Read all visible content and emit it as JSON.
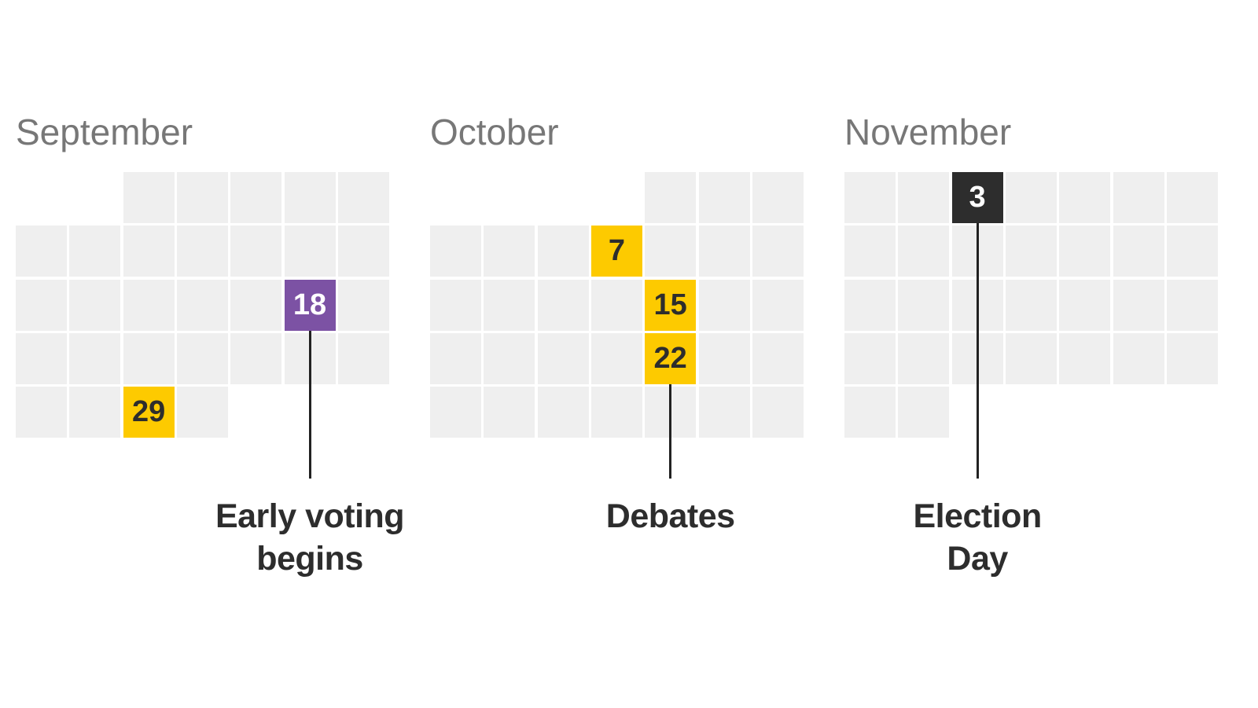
{
  "colors": {
    "empty_cell": "#efefef",
    "debate": "#fdca00",
    "early_voting": "#7c52a4",
    "election_day": "#2d2d2d",
    "month_label": "#777777",
    "label_text": "#2d2d2d",
    "leader_line": "#222222"
  },
  "months": [
    {
      "name": "September",
      "first_weekday": 2,
      "days_in_month": 30,
      "highlights": [
        {
          "day": 18,
          "label": "18",
          "kind": "early_voting"
        },
        {
          "day": 29,
          "label": "29",
          "kind": "debate"
        }
      ],
      "event_day": 18,
      "event_label": [
        "Early voting",
        "begins"
      ]
    },
    {
      "name": "October",
      "first_weekday": 4,
      "days_in_month": 31,
      "highlights": [
        {
          "day": 7,
          "label": "7",
          "kind": "debate"
        },
        {
          "day": 15,
          "label": "15",
          "kind": "debate"
        },
        {
          "day": 22,
          "label": "22",
          "kind": "debate"
        }
      ],
      "event_day": 22,
      "event_label": [
        "Debates"
      ]
    },
    {
      "name": "November",
      "first_weekday": 0,
      "days_in_month": 30,
      "highlights": [
        {
          "day": 3,
          "label": "3",
          "kind": "election_day"
        }
      ],
      "event_day": 3,
      "event_label": [
        "Election",
        "Day"
      ]
    }
  ]
}
